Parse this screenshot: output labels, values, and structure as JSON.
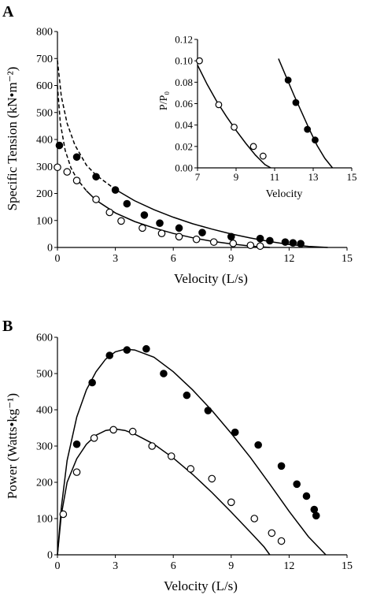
{
  "chart_data": [
    {
      "type": "scatter",
      "panel_label": "A",
      "title": "",
      "xlabel": "Velocity (L/s)",
      "ylabel": "Specific Tension (kN•m⁻²)",
      "xlim": [
        0,
        15
      ],
      "ylim": [
        0,
        800
      ],
      "xticks": [
        "0",
        "3",
        "6",
        "9",
        "12",
        "15"
      ],
      "yticks": [
        "0",
        "100",
        "200",
        "300",
        "400",
        "500",
        "600",
        "700",
        "800"
      ],
      "grid": false,
      "legend": "none",
      "series": [
        {
          "marker": "filled-circle",
          "color": "#000000",
          "points": [
            [
              0.1,
              378
            ],
            [
              1,
              335
            ],
            [
              2,
              262
            ],
            [
              3,
              213
            ],
            [
              3.6,
              162
            ],
            [
              4.5,
              120
            ],
            [
              5.3,
              90
            ],
            [
              6.3,
              72
            ],
            [
              7.5,
              55
            ],
            [
              9,
              40
            ],
            [
              10.5,
              33
            ],
            [
              11,
              25
            ],
            [
              11.8,
              20
            ],
            [
              12.2,
              17
            ],
            [
              12.6,
              14
            ]
          ],
          "curve": [
            [
              0,
              693
            ],
            [
              0.2,
              560
            ],
            [
              0.5,
              460
            ],
            [
              0.9,
              380
            ],
            [
              1.5,
              305
            ],
            [
              2,
              268
            ],
            [
              3,
              215
            ],
            [
              4,
              173
            ],
            [
              5,
              140
            ],
            [
              6,
              112
            ],
            [
              7,
              88
            ],
            [
              8,
              68
            ],
            [
              9,
              50
            ],
            [
              10,
              35
            ],
            [
              11,
              22
            ],
            [
              12,
              11
            ],
            [
              13,
              4
            ],
            [
              14,
              0
            ]
          ],
          "curve_dashed_until_x": 3
        },
        {
          "marker": "open-circle",
          "color": "#000000",
          "points": [
            [
              0,
              297
            ],
            [
              0.5,
              280
            ],
            [
              1,
              248
            ],
            [
              2,
              178
            ],
            [
              2.7,
              130
            ],
            [
              3.3,
              98
            ],
            [
              4.4,
              72
            ],
            [
              5.4,
              52
            ],
            [
              6.3,
              40
            ],
            [
              7.2,
              30
            ],
            [
              8.1,
              20
            ],
            [
              9.1,
              15
            ],
            [
              10,
              8
            ],
            [
              10.5,
              5
            ]
          ],
          "curve": [
            [
              0,
              600
            ],
            [
              0.15,
              460
            ],
            [
              0.4,
              360
            ],
            [
              0.7,
              295
            ],
            [
              1,
              255
            ],
            [
              1.5,
              210
            ],
            [
              2,
              175
            ],
            [
              3,
              128
            ],
            [
              4,
              96
            ],
            [
              5,
              72
            ],
            [
              6,
              52
            ],
            [
              7,
              36
            ],
            [
              8,
              23
            ],
            [
              9,
              13
            ],
            [
              10,
              5
            ],
            [
              11,
              0
            ]
          ],
          "curve_dashed_until_x": 1.5
        }
      ],
      "inset": {
        "type": "scatter",
        "xlabel": "Velocity",
        "ylabel": "P/P₀",
        "xlim": [
          7,
          15
        ],
        "ylim": [
          0,
          0.12
        ],
        "xticks": [
          "7",
          "9",
          "11",
          "13",
          "15"
        ],
        "yticks": [
          "0.00",
          "0.02",
          "0.04",
          "0.06",
          "0.08",
          "0.10",
          "0.12"
        ],
        "series": [
          {
            "marker": "filled-circle",
            "points": [
              [
                11.7,
                0.082
              ],
              [
                12.1,
                0.061
              ],
              [
                12.7,
                0.036
              ],
              [
                13.1,
                0.026
              ]
            ],
            "curve": [
              [
                11.2,
                0.102
              ],
              [
                11.6,
                0.085
              ],
              [
                12,
                0.068
              ],
              [
                12.4,
                0.052
              ],
              [
                12.8,
                0.036
              ],
              [
                13.2,
                0.021
              ],
              [
                13.6,
                0.009
              ],
              [
                14,
                0
              ]
            ]
          },
          {
            "marker": "open-circle",
            "points": [
              [
                7.1,
                0.1
              ],
              [
                8.1,
                0.059
              ],
              [
                8.9,
                0.038
              ],
              [
                9.9,
                0.02
              ],
              [
                10.4,
                0.011
              ]
            ],
            "curve": [
              [
                7,
                0.096
              ],
              [
                7.5,
                0.078
              ],
              [
                8,
                0.062
              ],
              [
                8.5,
                0.048
              ],
              [
                9,
                0.035
              ],
              [
                9.5,
                0.023
              ],
              [
                10,
                0.012
              ],
              [
                10.5,
                0.003
              ],
              [
                10.8,
                0
              ]
            ]
          }
        ]
      }
    },
    {
      "type": "scatter",
      "panel_label": "B",
      "title": "",
      "xlabel": "Velocity (L/s)",
      "ylabel": "Power (Watts•kg⁻¹)",
      "xlim": [
        0,
        15
      ],
      "ylim": [
        0,
        600
      ],
      "xticks": [
        "0",
        "3",
        "6",
        "9",
        "12",
        "15"
      ],
      "yticks": [
        "0",
        "100",
        "200",
        "300",
        "400",
        "500",
        "600"
      ],
      "grid": false,
      "legend": "none",
      "series": [
        {
          "marker": "filled-circle",
          "color": "#000000",
          "points": [
            [
              1,
              305
            ],
            [
              1.8,
              475
            ],
            [
              2.7,
              550
            ],
            [
              3.6,
              565
            ],
            [
              4.6,
              568
            ],
            [
              5.5,
              500
            ],
            [
              6.7,
              440
            ],
            [
              7.8,
              398
            ],
            [
              9.2,
              338
            ],
            [
              10.4,
              303
            ],
            [
              11.6,
              245
            ],
            [
              12.4,
              195
            ],
            [
              12.9,
              162
            ],
            [
              13.3,
              125
            ],
            [
              13.4,
              108
            ]
          ],
          "curve": [
            [
              0,
              0
            ],
            [
              0.2,
              130
            ],
            [
              0.5,
              260
            ],
            [
              1,
              380
            ],
            [
              1.5,
              455
            ],
            [
              2,
              505
            ],
            [
              2.5,
              540
            ],
            [
              3,
              560
            ],
            [
              3.5,
              567
            ],
            [
              4,
              565
            ],
            [
              5,
              545
            ],
            [
              6,
              505
            ],
            [
              7,
              455
            ],
            [
              8,
              398
            ],
            [
              9,
              335
            ],
            [
              10,
              268
            ],
            [
              11,
              195
            ],
            [
              12,
              120
            ],
            [
              13,
              50
            ],
            [
              13.9,
              0
            ]
          ]
        },
        {
          "marker": "open-circle",
          "color": "#000000",
          "points": [
            [
              0.3,
              112
            ],
            [
              1,
              228
            ],
            [
              1.9,
              322
            ],
            [
              2.9,
              345
            ],
            [
              3.9,
              340
            ],
            [
              4.9,
              300
            ],
            [
              5.9,
              272
            ],
            [
              6.9,
              237
            ],
            [
              8,
              210
            ],
            [
              9,
              145
            ],
            [
              10.2,
              100
            ],
            [
              11.1,
              60
            ],
            [
              11.6,
              38
            ]
          ],
          "curve": [
            [
              0,
              0
            ],
            [
              0.2,
              110
            ],
            [
              0.5,
              200
            ],
            [
              1,
              265
            ],
            [
              1.5,
              305
            ],
            [
              2,
              330
            ],
            [
              2.5,
              343
            ],
            [
              3,
              347
            ],
            [
              3.5,
              343
            ],
            [
              4,
              333
            ],
            [
              5,
              305
            ],
            [
              6,
              267
            ],
            [
              7,
              222
            ],
            [
              8,
              172
            ],
            [
              9,
              118
            ],
            [
              10,
              62
            ],
            [
              10.7,
              22
            ],
            [
              11,
              0
            ]
          ]
        }
      ]
    }
  ]
}
